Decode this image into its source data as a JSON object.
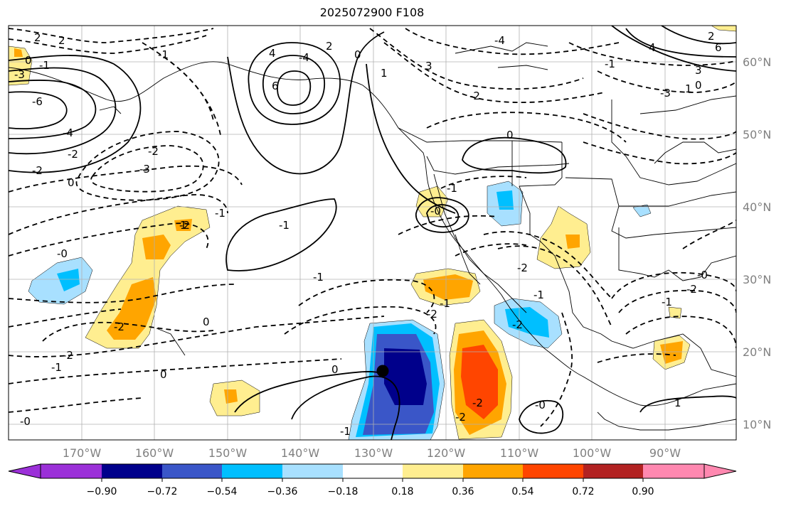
{
  "title": "2025072900 F108",
  "axes": {
    "lon_labels": [
      "170°W",
      "160°W",
      "150°W",
      "140°W",
      "130°W",
      "120°W",
      "110°W",
      "100°W",
      "90°W"
    ],
    "lat_labels": [
      "60°N",
      "50°N",
      "40°N",
      "30°N",
      "20°N",
      "10°N"
    ]
  },
  "colorbar": {
    "colors": [
      "#9b30d8",
      "#00008b",
      "#3a56c8",
      "#00bfff",
      "#a8e0ff",
      "#ffffff",
      "#ffee90",
      "#ffa500",
      "#ff4500",
      "#b22222",
      "#ff88b0"
    ],
    "tick_labels": [
      "−0.90",
      "−0.72",
      "−0.54",
      "−0.36",
      "−0.18",
      "0.18",
      "0.36",
      "0.54",
      "0.72",
      "0.90"
    ]
  },
  "contour_labels": [
    "2",
    "2",
    "-1",
    "0",
    "-1",
    "-3",
    "-6",
    "-4",
    "-2",
    "4",
    "-2",
    "-2",
    "-3",
    "0",
    "-1",
    "-0",
    "-2",
    "-1",
    "-0",
    "-2",
    "-2",
    "-1",
    "0",
    "-1",
    "-2",
    "-1",
    "0",
    "0",
    "-1",
    "-1",
    "-0",
    "1",
    "-2",
    "-2",
    "-2",
    "-2",
    "-1",
    "0",
    "-0",
    "-1",
    "-4",
    "2",
    "0",
    "1",
    "6",
    "3",
    "-1",
    "-2",
    "-3",
    "-4",
    "-0",
    "-2",
    "1",
    "3",
    "0",
    "1",
    "4",
    "2",
    "6"
  ],
  "marker": {
    "name": "center-point"
  }
}
